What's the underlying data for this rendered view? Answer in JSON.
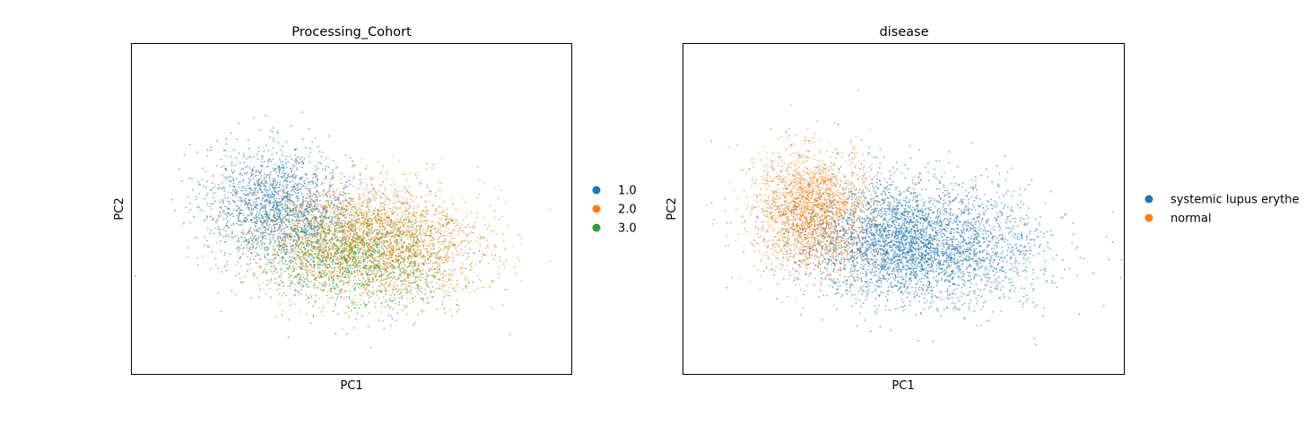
{
  "chart_data": [
    {
      "type": "scatter",
      "title": "Processing_Cohort",
      "xlabel": "PC1",
      "ylabel": "PC2",
      "grid": false,
      "legend_placement": "right-outside",
      "x_ticks": "none",
      "y_ticks": "none",
      "series": [
        {
          "name": "1.0",
          "color": "#1f77b4",
          "center": [
            -2.0,
            0.5
          ],
          "spread": [
            1.6,
            1.1
          ],
          "approx_points": 1600
        },
        {
          "name": "2.0",
          "color": "#ff7f0e",
          "center": [
            0.5,
            -0.2
          ],
          "spread": [
            2.5,
            1.1
          ],
          "approx_points": 2500
        },
        {
          "name": "3.0",
          "color": "#2ca02c",
          "center": [
            0.0,
            -0.6
          ],
          "spread": [
            2.2,
            1.05
          ],
          "approx_points": 1800
        }
      ]
    },
    {
      "type": "scatter",
      "title": "disease",
      "xlabel": "PC1",
      "ylabel": "PC2",
      "grid": false,
      "legend_placement": "right-outside",
      "x_ticks": "none",
      "y_ticks": "none",
      "series": [
        {
          "name": "systemic lupus erythe",
          "color": "#1f77b4",
          "center": [
            0.3,
            -0.3
          ],
          "spread": [
            2.5,
            1.15
          ],
          "approx_points": 3800
        },
        {
          "name": "normal",
          "color": "#ff7f0e",
          "center": [
            -2.5,
            0.3
          ],
          "spread": [
            1.3,
            1.15
          ],
          "approx_points": 2000
        }
      ]
    }
  ]
}
